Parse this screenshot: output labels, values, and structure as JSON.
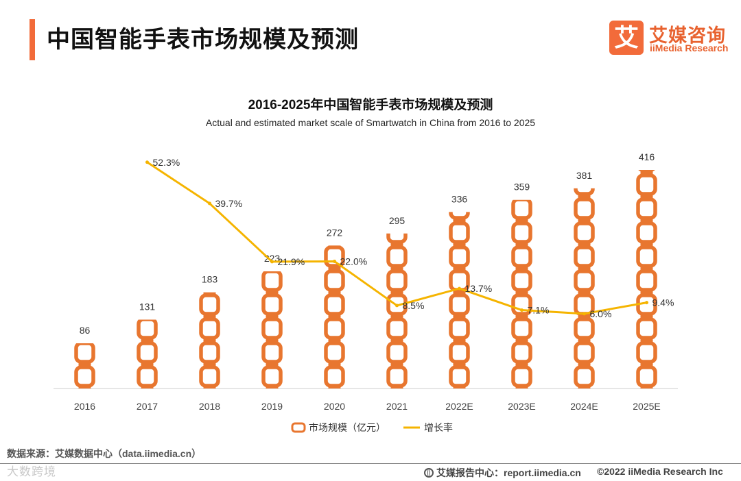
{
  "header": {
    "title": "中国智能手表市场规模及预测",
    "logo_mark": "艾",
    "logo_cn": "艾媒咨询",
    "logo_en": "iiMedia Research"
  },
  "chart_data": {
    "type": "bar",
    "title": "2016-2025年中国智能手表市场规模及预测",
    "subtitle": "Actual and estimated market scale of Smartwatch in China from 2016 to 2025",
    "categories": [
      "2016",
      "2017",
      "2018",
      "2019",
      "2020",
      "2021",
      "2022E",
      "2023E",
      "2024E",
      "2025E"
    ],
    "series": [
      {
        "name": "市场规模（亿元）",
        "type": "bar",
        "values": [
          86,
          131,
          183,
          223,
          272,
          295,
          336,
          359,
          381,
          416
        ],
        "color": "#e8762f"
      },
      {
        "name": "增长率",
        "type": "line",
        "axis": "secondary",
        "values": [
          null,
          52.3,
          39.7,
          21.9,
          22.0,
          8.5,
          13.7,
          7.1,
          6.0,
          9.4
        ],
        "labels": [
          "",
          "52.3%",
          "39.7%",
          "21.9%",
          "22.0%",
          "8.5%",
          "13.7%",
          "7.1%",
          "6.0%",
          "9.4%"
        ],
        "color": "#f5b400"
      }
    ],
    "ylim": [
      0,
      430
    ],
    "y2lim": [
      -20,
      60
    ],
    "legend_position": "bottom",
    "grid": false
  },
  "footer": {
    "source": "数据来源：艾媒数据中心（data.iimedia.cn）",
    "watermark": "大数跨境",
    "report": "艾媒报告中心：report.iimedia.cn",
    "copyright": "©2022 iiMedia Research Inc"
  }
}
